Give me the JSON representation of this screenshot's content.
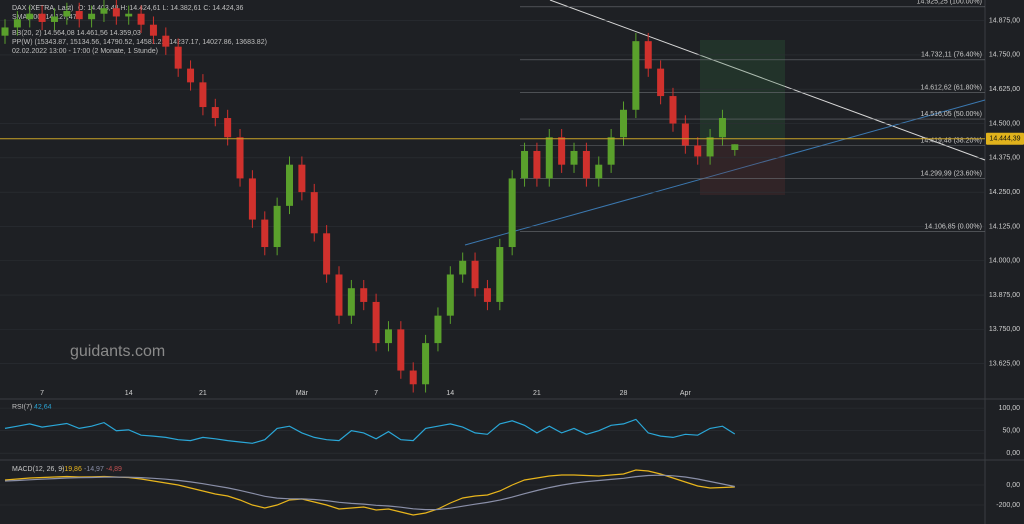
{
  "chart_data": [
    {
      "type": "candlestick",
      "title": "DAX (XETRA, Last)",
      "legend_lines": [
        "O: 14.403,48  H: 14.424,61  L: 14.382,61  C: 14.424,36",
        "SMA(200)  14.127,47",
        "BB(20, 2)  14.564,08  14.461,56  14.359,03",
        "PP(W)  (15343.87, 15134.56, 14790.52, 14581.21, 14237.17, 14027.86, 13683.82)",
        "02.02.2022 13:00 - 17:00  (2 Monate, 1 Stunde)"
      ],
      "watermark": "guidants.com",
      "categories": [
        null,
        null,
        null,
        "7",
        null,
        null,
        null,
        null,
        null,
        null,
        "14",
        null,
        null,
        null,
        null,
        null,
        "21",
        null,
        null,
        null,
        null,
        null,
        null,
        null,
        "Mär",
        null,
        null,
        null,
        null,
        null,
        "7",
        null,
        null,
        null,
        null,
        null,
        "14",
        null,
        null,
        null,
        null,
        null,
        null,
        "21",
        null,
        null,
        null,
        null,
        null,
        null,
        "28",
        null,
        null,
        null,
        null,
        "Apr",
        null,
        null,
        null,
        null
      ],
      "open": [
        14820,
        14850,
        14880,
        14900,
        14870,
        14890,
        14910,
        14880,
        14900,
        14920,
        14890,
        14900,
        14860,
        14820,
        14780,
        14700,
        14650,
        14560,
        14520,
        14450,
        14300,
        14150,
        14050,
        14200,
        14350,
        14250,
        14100,
        13950,
        13800,
        13900,
        13850,
        13700,
        13750,
        13600,
        13550,
        13700,
        13800,
        13950,
        14000,
        13900,
        13850,
        14050,
        14300,
        14400,
        14300,
        14450,
        14350,
        14400,
        14300,
        14350,
        14450,
        14550,
        14800,
        14700,
        14600,
        14500,
        14420,
        14380,
        14450,
        14403.48
      ],
      "high": [
        14880,
        14910,
        14930,
        14930,
        14920,
        14940,
        14940,
        14930,
        14950,
        14950,
        14930,
        14930,
        14890,
        14850,
        14810,
        14730,
        14680,
        14590,
        14550,
        14480,
        14330,
        14180,
        14230,
        14380,
        14380,
        14280,
        14130,
        13980,
        13930,
        13930,
        13880,
        13780,
        13780,
        13630,
        13730,
        13830,
        13980,
        14030,
        14030,
        13930,
        14080,
        14330,
        14430,
        14430,
        14480,
        14480,
        14430,
        14430,
        14380,
        14480,
        14580,
        14830,
        14830,
        14730,
        14630,
        14530,
        14450,
        14480,
        14550,
        14424.61
      ],
      "low": [
        14790,
        14820,
        14850,
        14840,
        14840,
        14860,
        14850,
        14850,
        14870,
        14860,
        14860,
        14830,
        14790,
        14750,
        14670,
        14620,
        14530,
        14490,
        14420,
        14270,
        14120,
        14020,
        14020,
        14170,
        14220,
        14070,
        13920,
        13770,
        13770,
        13820,
        13670,
        13670,
        13570,
        13520,
        13520,
        13670,
        13770,
        13920,
        13870,
        13820,
        13820,
        14020,
        14270,
        14270,
        14270,
        14320,
        14320,
        14270,
        14270,
        14320,
        14420,
        14520,
        14670,
        14570,
        14470,
        14390,
        14350,
        14350,
        14420,
        14382.61
      ],
      "close": [
        14850,
        14880,
        14900,
        14870,
        14890,
        14910,
        14880,
        14900,
        14920,
        14890,
        14900,
        14860,
        14820,
        14780,
        14700,
        14650,
        14560,
        14520,
        14450,
        14300,
        14150,
        14050,
        14200,
        14350,
        14250,
        14100,
        13950,
        13800,
        13900,
        13850,
        13700,
        13750,
        13600,
        13550,
        13700,
        13800,
        13950,
        14000,
        13900,
        13850,
        14050,
        14300,
        14400,
        14300,
        14450,
        14350,
        14400,
        14300,
        14350,
        14450,
        14550,
        14800,
        14700,
        14600,
        14500,
        14420,
        14380,
        14450,
        14520,
        14424.36
      ],
      "up_color": "#5aa02c",
      "down_color": "#d0312d",
      "ylim": [
        13500,
        14950
      ],
      "yticks": [
        {
          "value": 13625,
          "label": "13.625,00"
        },
        {
          "value": 13750,
          "label": "13.750,00"
        },
        {
          "value": 13875,
          "label": "13.875,00"
        },
        {
          "value": 14000,
          "label": "14.000,00"
        },
        {
          "value": 14125,
          "label": "14.125,00"
        },
        {
          "value": 14250,
          "label": "14.250,00"
        },
        {
          "value": 14375,
          "label": "14.375,00"
        },
        {
          "value": 14500,
          "label": "14.500,00"
        },
        {
          "value": 14625,
          "label": "14.625,00"
        },
        {
          "value": 14750,
          "label": "14.750,00"
        },
        {
          "value": 14875,
          "label": "14.875,00"
        }
      ],
      "levels": [
        {
          "value": 14925.25,
          "label": "14.925,25 (100.00%)"
        },
        {
          "value": 14732.11,
          "label": "14.732,11 (76.40%)"
        },
        {
          "value": 14612.62,
          "label": "14.612,62 (61.80%)"
        },
        {
          "value": 14516.05,
          "label": "14.516,05 (50.00%)"
        },
        {
          "value": 14419.48,
          "label": "14.419,48 (38.20%)"
        },
        {
          "value": 14299.99,
          "label": "14.299,99 (23.60%)"
        },
        {
          "value": 14106.85,
          "label": "14.106,85 (0.00%)"
        }
      ],
      "price_tag": {
        "value": 14444.39,
        "label": "14.444,39"
      }
    },
    {
      "type": "line",
      "title": "RSI(7)",
      "value_label": "42,64",
      "series": [
        {
          "color": "#2aa7d8",
          "values": [
            55,
            60,
            65,
            58,
            62,
            66,
            55,
            60,
            68,
            50,
            52,
            40,
            38,
            35,
            30,
            28,
            35,
            32,
            28,
            25,
            22,
            30,
            55,
            60,
            45,
            35,
            30,
            28,
            50,
            45,
            32,
            48,
            30,
            28,
            55,
            60,
            65,
            58,
            45,
            42,
            65,
            72,
            62,
            45,
            60,
            45,
            55,
            42,
            50,
            62,
            65,
            75,
            45,
            38,
            35,
            42,
            40,
            55,
            60,
            42.64
          ]
        }
      ],
      "ylim": [
        -15,
        118
      ],
      "yticks": [
        {
          "value": 100,
          "label": "100,00"
        },
        {
          "value": 50,
          "label": "50,00"
        },
        {
          "value": 0,
          "label": "0,00"
        }
      ]
    },
    {
      "type": "line",
      "title": "MACD(12, 26, 9)",
      "histogram_label": "-4,89",
      "series": [
        {
          "color": "#e8b51c",
          "value_label": "-19,86",
          "values": [
            50,
            60,
            70,
            75,
            80,
            85,
            80,
            82,
            85,
            80,
            75,
            60,
            40,
            20,
            0,
            -30,
            -60,
            -90,
            -110,
            -150,
            -200,
            -230,
            -200,
            -150,
            -140,
            -170,
            -200,
            -240,
            -230,
            -220,
            -250,
            -240,
            -270,
            -300,
            -280,
            -240,
            -180,
            -130,
            -110,
            -100,
            -60,
            0,
            50,
            70,
            90,
            100,
            100,
            95,
            90,
            100,
            110,
            150,
            140,
            110,
            70,
            30,
            -10,
            -30,
            -25,
            -19.86
          ]
        },
        {
          "color": "#8a8fa8",
          "value_label": "-14,97",
          "values": [
            40,
            45,
            52,
            58,
            64,
            70,
            73,
            75,
            78,
            79,
            78,
            74,
            67,
            58,
            46,
            31,
            13,
            -8,
            -29,
            -54,
            -83,
            -113,
            -131,
            -138,
            -139,
            -145,
            -156,
            -173,
            -184,
            -191,
            -203,
            -210,
            -222,
            -238,
            -246,
            -245,
            -232,
            -212,
            -192,
            -174,
            -151,
            -121,
            -87,
            -55,
            -26,
            -1,
            19,
            34,
            45,
            56,
            67,
            84,
            95,
            98,
            92,
            80,
            60,
            35,
            10,
            -14.97
          ]
        }
      ],
      "ylim": [
        -390,
        230
      ],
      "yticks": [
        {
          "value": 0,
          "label": "0,00"
        },
        {
          "value": -200,
          "label": "-200,00"
        }
      ]
    }
  ]
}
